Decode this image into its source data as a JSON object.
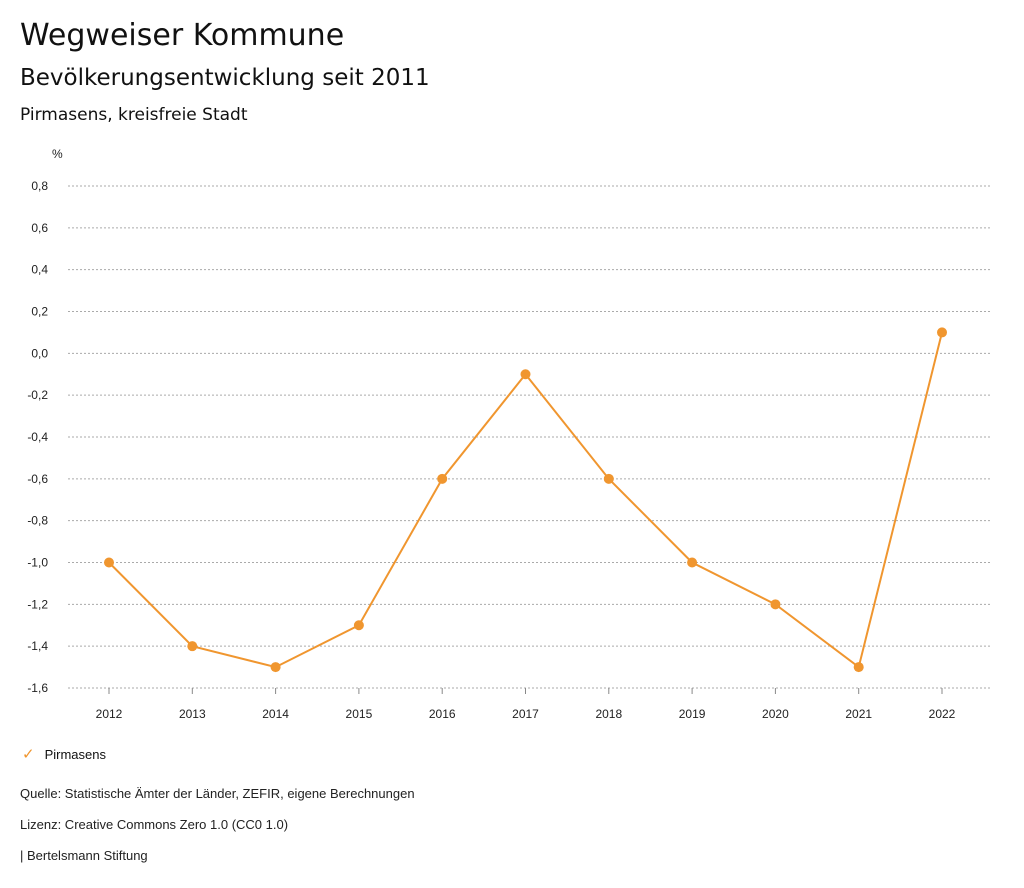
{
  "header": {
    "title": "Wegweiser Kommune",
    "subtitle": "Bevölkerungsentwicklung seit 2011",
    "region": "Pirmasens, kreisfreie Stadt"
  },
  "chart_data": {
    "type": "line",
    "title": "Bevölkerungsentwicklung seit 2011",
    "ylabel": "%",
    "xlabel": "",
    "x": [
      "2012",
      "2013",
      "2014",
      "2015",
      "2016",
      "2017",
      "2018",
      "2019",
      "2020",
      "2021",
      "2022"
    ],
    "series": [
      {
        "name": "Pirmasens",
        "color": "#f0962f",
        "values": [
          -1.0,
          -1.4,
          -1.5,
          -1.3,
          -0.6,
          -0.1,
          -0.6,
          -1.0,
          -1.2,
          -1.5,
          0.1
        ]
      }
    ],
    "ylim": [
      -1.6,
      0.8
    ],
    "yticks": [
      "0,8",
      "0,6",
      "0,4",
      "0,2",
      "0,0",
      "-0,2",
      "-0,4",
      "-0,6",
      "-0,8",
      "-1,0",
      "-1,2",
      "-1,4",
      "-1,6"
    ],
    "ytick_values": [
      0.8,
      0.6,
      0.4,
      0.2,
      0.0,
      -0.2,
      -0.4,
      -0.6,
      -0.8,
      -1.0,
      -1.2,
      -1.4,
      -1.6
    ],
    "grid": true,
    "legend_position": "bottom-left"
  },
  "legend": {
    "label": "Pirmasens"
  },
  "footer": {
    "source": "Quelle: Statistische Ämter der Länder, ZEFIR, eigene Berechnungen",
    "license": "Lizenz: Creative Commons Zero 1.0 (CC0 1.0)",
    "publisher": "| Bertelsmann Stiftung"
  }
}
